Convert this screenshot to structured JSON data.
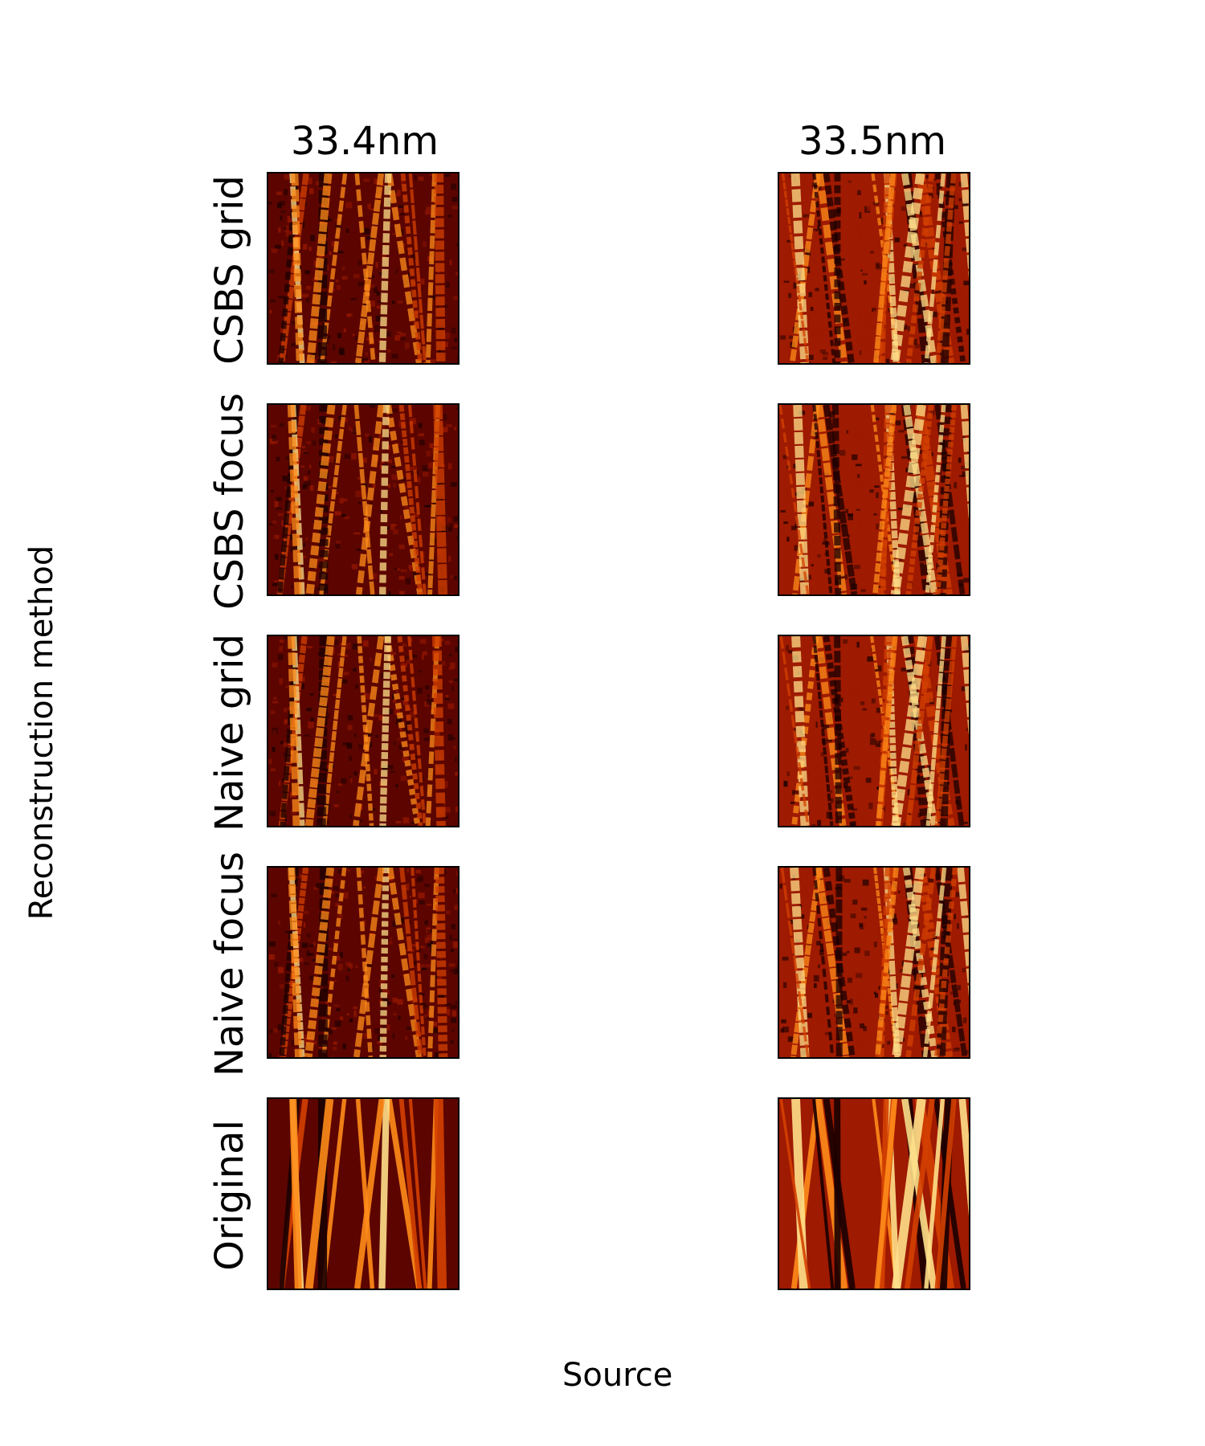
{
  "figure": {
    "columns": [
      "33.4nm",
      "33.5nm"
    ],
    "rows": [
      "CSBS grid",
      "CSBS focus",
      "Naive grid",
      "Naive focus",
      "Original"
    ],
    "xlabel": "Source",
    "ylabel": "Reconstruction method",
    "colormap": [
      "#1a0000",
      "#5c0500",
      "#9e1a00",
      "#d44000",
      "#ff8c1a",
      "#ffe08a"
    ]
  }
}
